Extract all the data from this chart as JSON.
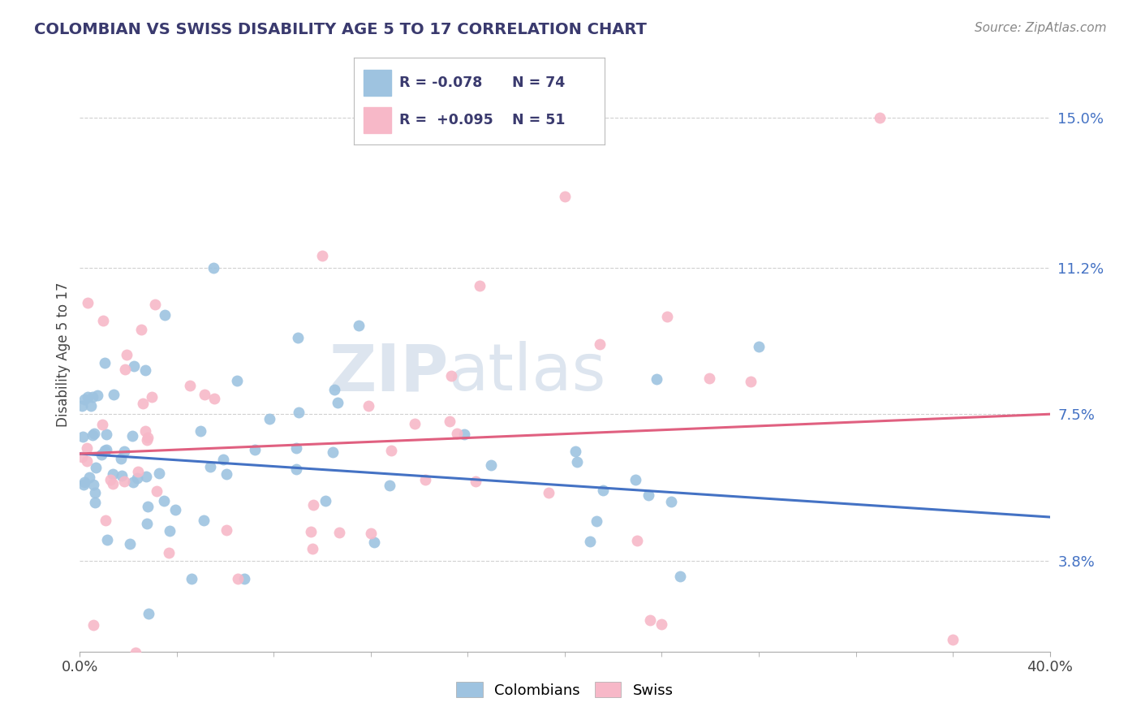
{
  "title": "COLOMBIAN VS SWISS DISABILITY AGE 5 TO 17 CORRELATION CHART",
  "source_text": "Source: ZipAtlas.com",
  "ylabel": "Disability Age 5 to 17",
  "xlim": [
    0.0,
    40.0
  ],
  "ylim": [
    1.5,
    16.5
  ],
  "yticks": [
    3.8,
    7.5,
    11.2,
    15.0
  ],
  "ytick_labels": [
    "3.8%",
    "7.5%",
    "11.2%",
    "15.0%"
  ],
  "colombian_color": "#9EC3E0",
  "swiss_color": "#F7B8C8",
  "colombian_line_color": "#4472C4",
  "swiss_line_color": "#E06080",
  "colombian_R": -0.078,
  "colombian_N": 74,
  "swiss_R": 0.095,
  "swiss_N": 51,
  "background_color": "#ffffff",
  "grid_color": "#d0d0d0",
  "title_color": "#3a3a6e",
  "watermark_color": "#dde5ef",
  "reg_line_start_y": 6.5,
  "col_reg_slope": -0.04,
  "swiss_reg_slope": 0.025,
  "col_scatter_seed": 42,
  "swiss_scatter_seed": 7
}
